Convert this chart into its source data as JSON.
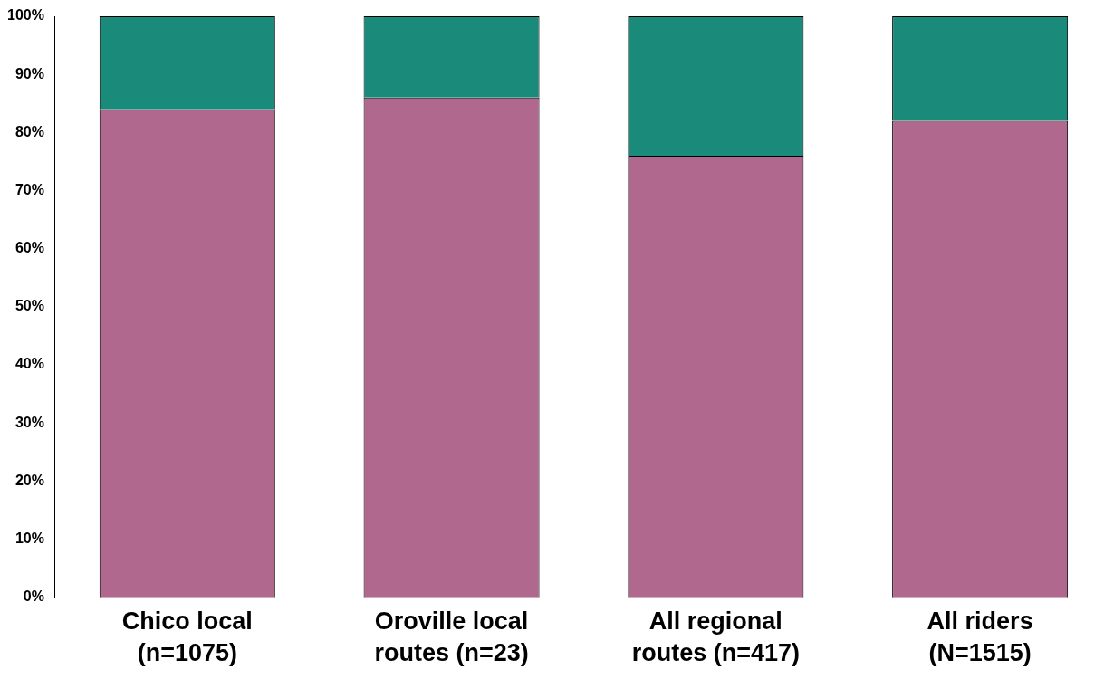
{
  "chart_data": {
    "type": "bar",
    "stacked": true,
    "categories": [
      "Chico local\n(n=1075)",
      "Oroville local\nroutes (n=23)",
      "All regional\nroutes (n=417)",
      "All riders\n(N=1515)"
    ],
    "series": [
      {
        "color": "#b0688f",
        "values": [
          84,
          86,
          76,
          82
        ]
      },
      {
        "color": "#1a8a7a",
        "values": [
          16,
          14,
          24,
          18
        ]
      }
    ],
    "ylim": [
      0,
      100
    ],
    "yticks": [
      {
        "value": 0,
        "label": "0%"
      },
      {
        "value": 10,
        "label": "10%"
      },
      {
        "value": 20,
        "label": "20%"
      },
      {
        "value": 30,
        "label": "30%"
      },
      {
        "value": 40,
        "label": "40%"
      },
      {
        "value": 50,
        "label": "50%"
      },
      {
        "value": 60,
        "label": "60%"
      },
      {
        "value": 70,
        "label": "70%"
      },
      {
        "value": 80,
        "label": "80%"
      },
      {
        "value": 90,
        "label": "90%"
      },
      {
        "value": 100,
        "label": "100%"
      }
    ],
    "grid": false,
    "legend": false
  }
}
